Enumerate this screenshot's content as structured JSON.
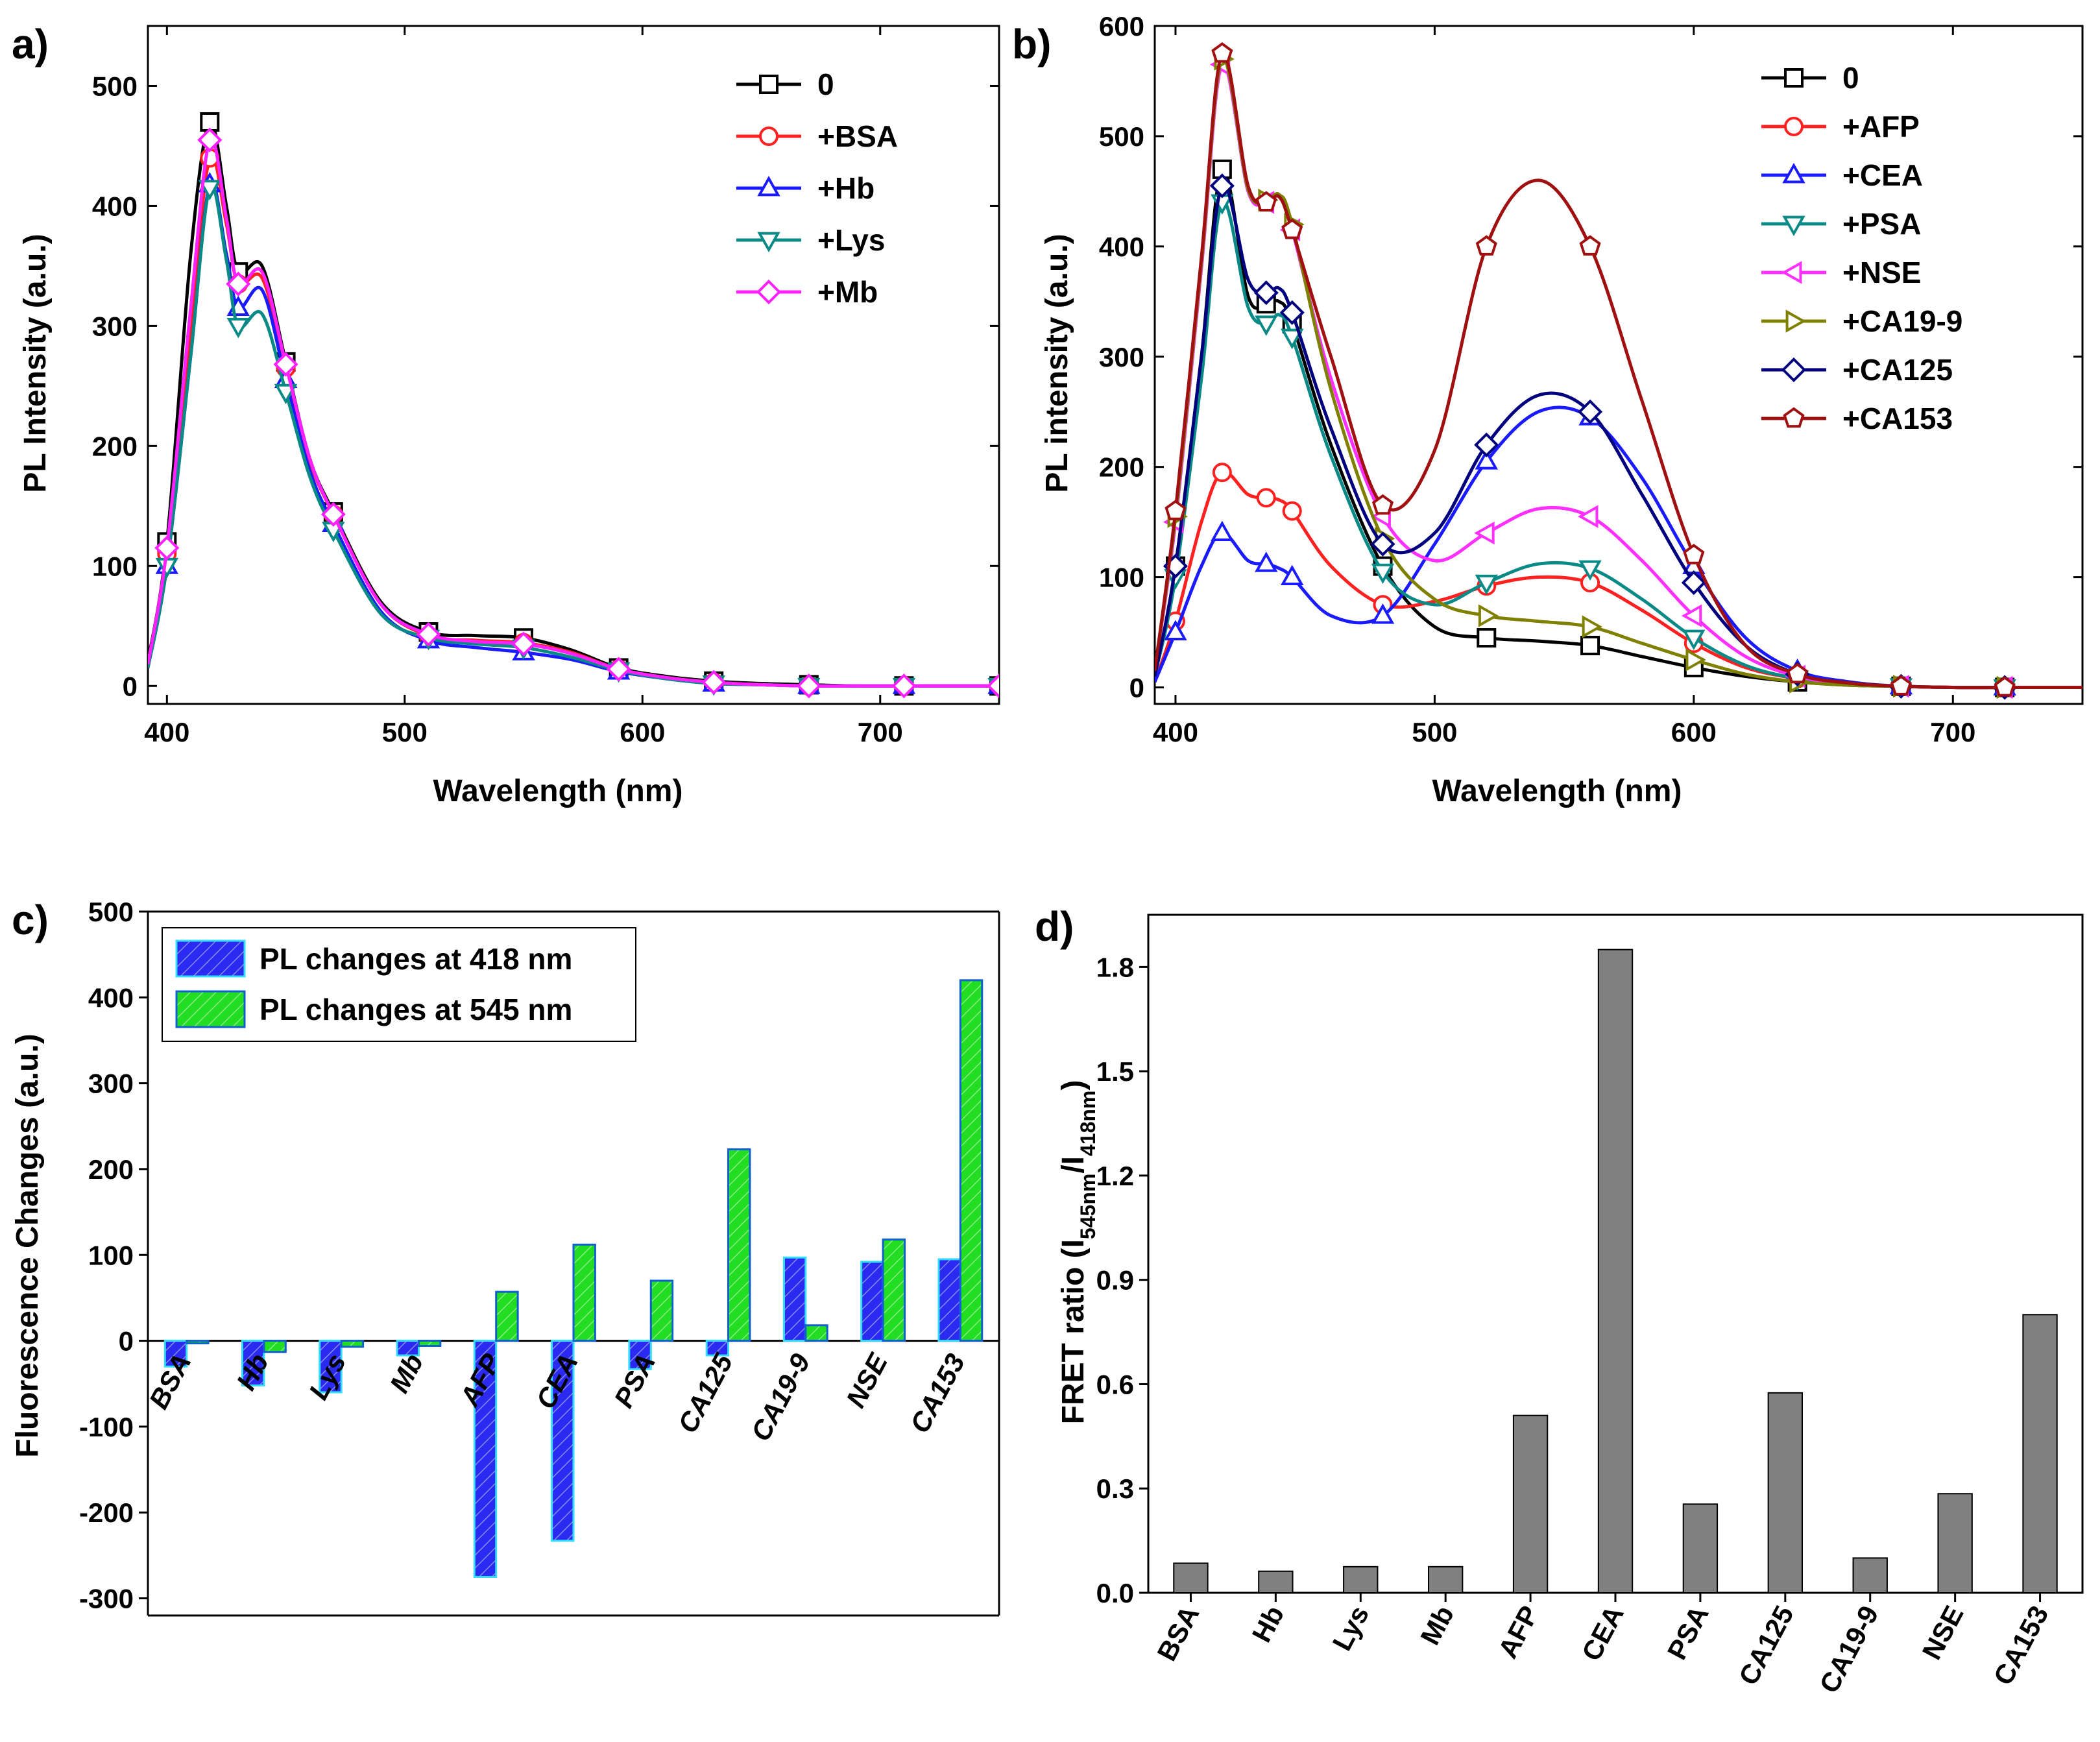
{
  "colors": {
    "0": "#000000",
    "BSA": "#ff2020",
    "Hb": "#1a1aff",
    "Lys": "#0a8a86",
    "Mb": "#ff20ff",
    "AFP": "#ff2020",
    "CEA": "#1a1aff",
    "PSA": "#0a8a86",
    "NSE": "#ff30ff",
    "CA19-9": "#7f7f00",
    "CA125": "#00007f",
    "CA153": "#a01010",
    "bar418_fill": "#2a2af0",
    "bar418_edge": "#33ddff",
    "bar545_fill": "#22dd22",
    "bar545_edge": "#1060d0",
    "barD_fill": "#808080",
    "barD_edge": "#000000"
  },
  "chart_data": [
    {
      "panel": "a)",
      "type": "line",
      "xlabel": "Wavelength (nm)",
      "ylabel": "PL Intensity (a.u.)",
      "xlim": [
        392,
        750
      ],
      "ylim": [
        -15,
        550
      ],
      "xticks": [
        400,
        500,
        600,
        700
      ],
      "yticks": [
        0,
        100,
        200,
        300,
        400,
        500
      ],
      "legend_position": "top-right",
      "series": [
        {
          "name": "0",
          "marker": "square",
          "x": [
            392,
            400,
            410,
            418,
            425,
            430,
            440,
            450,
            460,
            470,
            490,
            510,
            530,
            550,
            570,
            590,
            610,
            630,
            650,
            670,
            690,
            710,
            730,
            750
          ],
          "y": [
            20,
            120,
            360,
            470,
            400,
            345,
            350,
            270,
            190,
            145,
            70,
            45,
            42,
            40,
            30,
            15,
            8,
            4,
            2,
            1,
            0,
            0,
            0,
            0
          ]
        },
        {
          "name": "+BSA",
          "marker": "circle",
          "x": [
            392,
            400,
            410,
            418,
            425,
            430,
            440,
            450,
            460,
            470,
            490,
            510,
            530,
            550,
            570,
            590,
            610,
            630,
            650,
            670,
            690,
            710,
            730,
            750
          ],
          "y": [
            18,
            110,
            300,
            440,
            385,
            335,
            340,
            265,
            188,
            143,
            68,
            42,
            38,
            36,
            28,
            14,
            7,
            3,
            1,
            0,
            0,
            0,
            0,
            0
          ]
        },
        {
          "name": "+Hb",
          "marker": "triangle-up",
          "x": [
            392,
            400,
            410,
            418,
            425,
            430,
            440,
            450,
            460,
            470,
            490,
            510,
            530,
            550,
            570,
            590,
            610,
            630,
            650,
            670,
            690,
            710,
            730,
            750
          ],
          "y": [
            15,
            100,
            275,
            418,
            360,
            315,
            330,
            255,
            180,
            135,
            62,
            38,
            32,
            28,
            22,
            12,
            6,
            2,
            1,
            0,
            0,
            0,
            0,
            0
          ]
        },
        {
          "name": "+Lys",
          "marker": "triangle-down",
          "x": [
            392,
            400,
            410,
            418,
            425,
            430,
            440,
            450,
            460,
            470,
            490,
            510,
            530,
            550,
            570,
            590,
            610,
            630,
            650,
            670,
            690,
            710,
            730,
            750
          ],
          "y": [
            15,
            100,
            275,
            415,
            355,
            300,
            310,
            245,
            175,
            130,
            60,
            40,
            35,
            32,
            24,
            13,
            6,
            2,
            1,
            0,
            0,
            0,
            0,
            0
          ]
        },
        {
          "name": "+Mb",
          "marker": "diamond",
          "x": [
            392,
            400,
            410,
            418,
            425,
            430,
            440,
            450,
            460,
            470,
            490,
            510,
            530,
            550,
            570,
            590,
            610,
            630,
            650,
            670,
            690,
            710,
            730,
            750
          ],
          "y": [
            18,
            115,
            315,
            455,
            390,
            335,
            345,
            268,
            190,
            143,
            68,
            43,
            37,
            35,
            27,
            14,
            7,
            3,
            1,
            0,
            0,
            0,
            0,
            0
          ]
        }
      ]
    },
    {
      "panel": "b)",
      "type": "line",
      "xlabel": "Wavelength (nm)",
      "ylabel": "PL intensity (a.u.)",
      "xlim": [
        392,
        750
      ],
      "ylim": [
        -15,
        600
      ],
      "xticks": [
        400,
        500,
        600,
        700
      ],
      "yticks": [
        0,
        100,
        200,
        300,
        400,
        500,
        600
      ],
      "legend_position": "top-right",
      "series": [
        {
          "name": "0",
          "marker": "square",
          "x": [
            392,
            400,
            410,
            418,
            428,
            435,
            440,
            445,
            460,
            480,
            500,
            520,
            540,
            560,
            580,
            600,
            620,
            640,
            660,
            680,
            700,
            720,
            750
          ],
          "y": [
            10,
            110,
            300,
            470,
            355,
            348,
            350,
            330,
            220,
            110,
            55,
            45,
            42,
            38,
            28,
            18,
            10,
            5,
            2,
            1,
            0,
            0,
            0
          ]
        },
        {
          "name": "+AFP",
          "marker": "circle",
          "x": [
            392,
            400,
            410,
            418,
            428,
            435,
            440,
            445,
            460,
            480,
            500,
            520,
            540,
            560,
            580,
            600,
            620,
            640,
            660,
            680,
            700,
            720,
            750
          ],
          "y": [
            5,
            60,
            150,
            195,
            175,
            172,
            170,
            160,
            110,
            75,
            78,
            92,
            100,
            95,
            70,
            40,
            18,
            8,
            3,
            1,
            0,
            0,
            0
          ]
        },
        {
          "name": "+CEA",
          "marker": "triangle-up",
          "x": [
            392,
            400,
            410,
            418,
            428,
            435,
            440,
            445,
            460,
            480,
            500,
            520,
            540,
            560,
            580,
            600,
            620,
            640,
            660,
            680,
            700,
            720,
            750
          ],
          "y": [
            5,
            50,
            110,
            140,
            115,
            112,
            108,
            100,
            65,
            65,
            130,
            205,
            250,
            245,
            190,
            110,
            45,
            15,
            5,
            1,
            0,
            0,
            0
          ]
        },
        {
          "name": "+PSA",
          "marker": "triangle-down",
          "x": [
            392,
            400,
            410,
            418,
            428,
            435,
            440,
            445,
            460,
            480,
            500,
            520,
            540,
            560,
            580,
            600,
            620,
            640,
            660,
            680,
            700,
            720,
            750
          ],
          "y": [
            10,
            100,
            280,
            440,
            345,
            330,
            338,
            318,
            210,
            105,
            75,
            95,
            112,
            108,
            80,
            45,
            20,
            8,
            3,
            1,
            0,
            0,
            0
          ]
        },
        {
          "name": "+NSE",
          "marker": "triangle-left",
          "x": [
            392,
            400,
            410,
            418,
            428,
            435,
            440,
            445,
            460,
            480,
            500,
            520,
            540,
            560,
            580,
            600,
            620,
            640,
            660,
            680,
            700,
            720,
            750
          ],
          "y": [
            15,
            150,
            380,
            565,
            450,
            440,
            445,
            415,
            280,
            155,
            115,
            140,
            162,
            155,
            115,
            65,
            28,
            10,
            3,
            1,
            0,
            0,
            0
          ]
        },
        {
          "name": "+CA19-9",
          "marker": "triangle-right",
          "x": [
            392,
            400,
            410,
            418,
            428,
            435,
            440,
            445,
            460,
            480,
            500,
            520,
            540,
            560,
            580,
            600,
            620,
            640,
            660,
            680,
            700,
            720,
            750
          ],
          "y": [
            15,
            155,
            385,
            570,
            452,
            442,
            447,
            420,
            270,
            135,
            80,
            65,
            60,
            55,
            40,
            25,
            12,
            5,
            2,
            1,
            0,
            0,
            0
          ]
        },
        {
          "name": "+CA125",
          "marker": "diamond",
          "x": [
            392,
            400,
            410,
            418,
            428,
            435,
            440,
            445,
            460,
            480,
            500,
            520,
            540,
            560,
            580,
            600,
            620,
            640,
            660,
            680,
            700,
            720,
            750
          ],
          "y": [
            10,
            110,
            300,
            455,
            370,
            358,
            362,
            340,
            235,
            130,
            140,
            220,
            265,
            250,
            175,
            95,
            38,
            12,
            4,
            1,
            0,
            0,
            0
          ]
        },
        {
          "name": "+CA153",
          "marker": "pentagon",
          "x": [
            392,
            400,
            410,
            418,
            428,
            435,
            440,
            445,
            460,
            480,
            500,
            520,
            540,
            560,
            580,
            600,
            620,
            640,
            660,
            680,
            700,
            720,
            750
          ],
          "y": [
            15,
            160,
            390,
            575,
            455,
            440,
            445,
            415,
            300,
            165,
            215,
            400,
            460,
            400,
            260,
            120,
            38,
            12,
            4,
            1,
            0,
            0,
            0
          ]
        }
      ]
    },
    {
      "panel": "c)",
      "type": "bar",
      "ylabel": "Fluorescence Changes (a.u.)",
      "ylim": [
        -320,
        500
      ],
      "yticks": [
        -300,
        -200,
        -100,
        0,
        100,
        200,
        300,
        400,
        500
      ],
      "legend_position": "top-left",
      "categories": [
        "BSA",
        "Hb",
        "Lys",
        "Mb",
        "AFP",
        "CEA",
        "PSA",
        "CA125",
        "CA19-9",
        "NSE",
        "CA153"
      ],
      "series": [
        {
          "name": "PL changes at 418 nm",
          "values": [
            -30,
            -52,
            -60,
            -17,
            -275,
            -233,
            -33,
            -17,
            97,
            92,
            95
          ]
        },
        {
          "name": "PL changes at 545 nm",
          "values": [
            -3,
            -13,
            -7,
            -6,
            57,
            112,
            70,
            223,
            18,
            118,
            420
          ]
        }
      ]
    },
    {
      "panel": "d)",
      "type": "bar",
      "ylabel": "FRET ratio (I545nm/I418nm)",
      "ylim": [
        0,
        1.95
      ],
      "yticks": [
        0.0,
        0.3,
        0.6,
        0.9,
        1.2,
        1.5,
        1.8
      ],
      "categories": [
        "BSA",
        "Hb",
        "Lys",
        "Mb",
        "AFP",
        "CEA",
        "PSA",
        "CA125",
        "CA19-9",
        "NSE",
        "CA153"
      ],
      "values": [
        0.085,
        0.062,
        0.075,
        0.075,
        0.51,
        1.85,
        0.255,
        0.575,
        0.1,
        0.285,
        0.8
      ]
    }
  ],
  "ylabel_parts_d": {
    "prefix": "FRET ratio (I",
    "sub1": "545nm",
    "mid": "/I",
    "sub2": "418nm",
    "suffix": ")"
  }
}
